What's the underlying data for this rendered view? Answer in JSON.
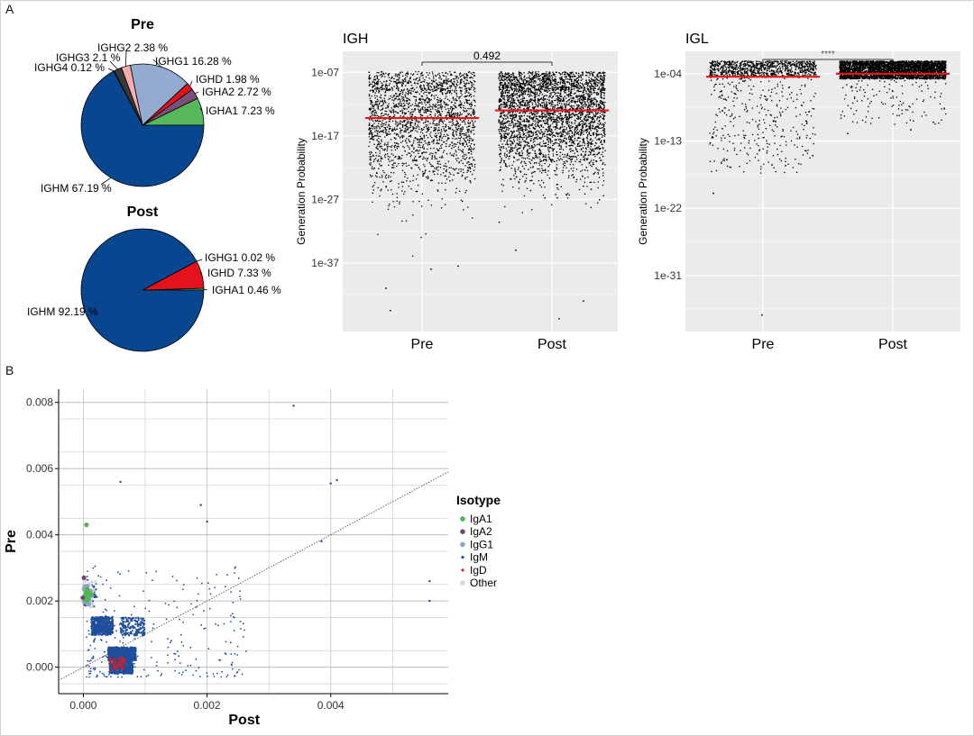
{
  "panels": {
    "a": "A",
    "b": "B"
  },
  "chart_data": [
    {
      "type": "pie",
      "title": "Pre",
      "slices": [
        {
          "label": "IGHA1 7.23 %",
          "value": 7.23,
          "color": "#58b85c"
        },
        {
          "label": "IGHA2 2.72 %",
          "value": 2.72,
          "color": "#7a4f7a"
        },
        {
          "label": "IGHD 1.98 %",
          "value": 1.98,
          "color": "#e3121b"
        },
        {
          "label": "IGHG1 16.28 %",
          "value": 16.28,
          "color": "#92abcf"
        },
        {
          "label": "IGHG2 2.38 %",
          "value": 2.38,
          "color": "#f2aeae"
        },
        {
          "label": "IGHG3 2.1 %",
          "value": 2.1,
          "color": "#3a3a3a"
        },
        {
          "label": "IGHG4 0.12 %",
          "value": 0.12,
          "color": "#9e9e9e"
        },
        {
          "label": "IGHM 67.19 %",
          "value": 67.19,
          "color": "#08468f"
        }
      ]
    },
    {
      "type": "pie",
      "title": "Post",
      "slices": [
        {
          "label": "IGHA1 0.46 %",
          "value": 0.46,
          "color": "#58b85c"
        },
        {
          "label": "IGHD 7.33 %",
          "value": 7.33,
          "color": "#e3121b"
        },
        {
          "label": "IGHG1 0.02 %",
          "value": 0.02,
          "color": "#92abcf"
        },
        {
          "label": "IGHM 92.19 %",
          "value": 92.19,
          "color": "#08468f"
        }
      ]
    },
    {
      "type": "scatter",
      "title": "IGH",
      "ylabel": "Generation Probability",
      "categories": [
        "Pre",
        "Post"
      ],
      "y_scale": "log10",
      "y_ticks": [
        "1e-07",
        "1e-17",
        "1e-27",
        "1e-37"
      ],
      "median_log10": [
        -14.2,
        -13.0
      ],
      "comparison": "0.492"
    },
    {
      "type": "scatter",
      "title": "IGL",
      "ylabel": "Generation Probability",
      "categories": [
        "Pre",
        "Post"
      ],
      "y_scale": "log10",
      "y_ticks": [
        "1e-04",
        "1e-13",
        "1e-22",
        "1e-31"
      ],
      "median_log10": [
        -4.4,
        -4.0
      ],
      "comparison": "****"
    },
    {
      "type": "scatter",
      "xlabel": "Post",
      "ylabel": "Pre",
      "xlim": [
        -0.0004,
        0.0059
      ],
      "ylim": [
        -0.0008,
        0.0084
      ],
      "x_ticks": [
        "0.000",
        "0.002",
        "0.004"
      ],
      "y_ticks": [
        "0.000",
        "0.002",
        "0.004",
        "0.006",
        "0.008"
      ],
      "legend_title": "Isotype",
      "legend_placement": "right",
      "series": [
        {
          "name": "IgA1",
          "color": "#4db84d"
        },
        {
          "name": "IgA2",
          "color": "#6b4a75"
        },
        {
          "name": "IgG1",
          "color": "#8fa5c9"
        },
        {
          "name": "IgM",
          "color": "#1f4e9c"
        },
        {
          "name": "IgD",
          "color": "#e31a1c"
        },
        {
          "name": "Other",
          "color": "#d8d8d8"
        }
      ],
      "notable_points": [
        {
          "x": 0.0034,
          "y": 0.0079
        },
        {
          "x": 0.0041,
          "y": 0.00565
        },
        {
          "x": 0.004,
          "y": 0.00555
        },
        {
          "x": 0.00385,
          "y": 0.0038
        },
        {
          "x": 0.0056,
          "y": 0.0026
        },
        {
          "x": 0.0056,
          "y": 0.002
        },
        {
          "x": 0.0006,
          "y": 0.0056
        },
        {
          "x": 0.0019,
          "y": 0.0049
        },
        {
          "x": 0.002,
          "y": 0.0044
        }
      ]
    }
  ]
}
